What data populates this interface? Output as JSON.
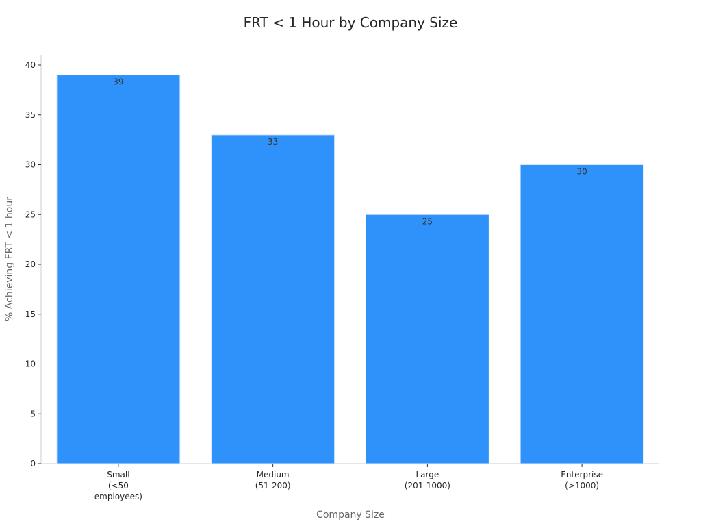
{
  "chart_data": {
    "type": "bar",
    "title": "FRT < 1 Hour by Company Size",
    "xlabel": "Company Size",
    "ylabel": "% Achieving FRT < 1 hour",
    "categories": [
      [
        "Small",
        "(<50",
        "employees)"
      ],
      [
        "Medium",
        "(51-200)"
      ],
      [
        "Large",
        "(201-1000)"
      ],
      [
        "Enterprise",
        "(>1000)"
      ]
    ],
    "values": [
      39,
      33,
      25,
      30
    ],
    "ylim": [
      0,
      40
    ],
    "yticks": [
      0,
      5,
      10,
      15,
      20,
      25,
      30,
      35,
      40
    ],
    "grid": false,
    "colors": {
      "bar": "#2f92fa",
      "bar_edge": "#d9e8fb"
    }
  }
}
